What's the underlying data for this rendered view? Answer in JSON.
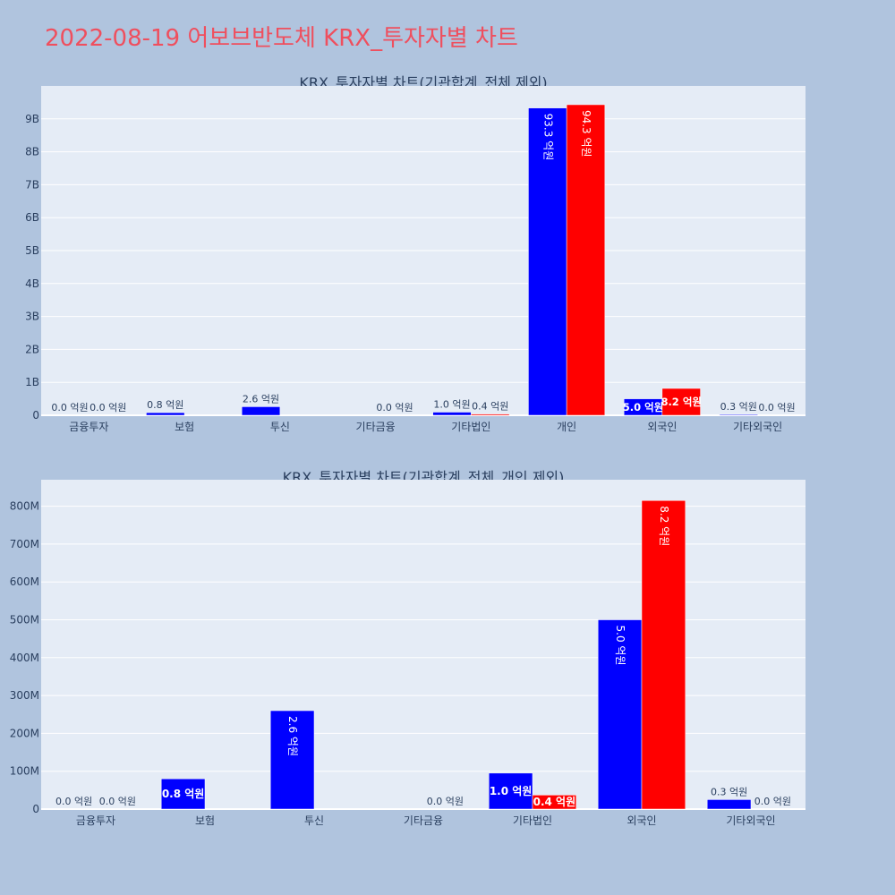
{
  "page_title": "2022-08-19 어보브반도체 KRX_투자자별 차트",
  "colors": {
    "buy": "#0000ff",
    "sell": "#ff0000",
    "title": "#ef4f5e",
    "plot_bg": "#e5ecf6",
    "paper_bg": "#b0c4de"
  },
  "chart_data": [
    {
      "type": "bar",
      "title": "KRX_투자자별 차트(기관합계_전체 제외)",
      "categories": [
        "금융투자",
        "보험",
        "투신",
        "기타금융",
        "기타법인",
        "개인",
        "외국인",
        "기타외국인"
      ],
      "series": [
        {
          "values": [
            0,
            80000000,
            260000000,
            null,
            95000000,
            9330000000,
            500000000,
            25000000
          ],
          "labels": [
            "0.0 억원",
            "0.8 억원",
            "2.6 억원",
            "",
            "1.0 억원",
            "93.3 억원",
            "5.0 억원",
            "0.3 억원"
          ]
        },
        {
          "values": [
            0,
            null,
            null,
            0,
            37000000,
            9430000000,
            815000000,
            0
          ],
          "labels": [
            "0.0 억원",
            "",
            "",
            "0.0 억원",
            "0.4 억원",
            "94.3 억원",
            "8.2 억원",
            "0.0 억원"
          ]
        }
      ],
      "ylim": [
        0,
        10000000000
      ],
      "yticks": [
        0,
        1000000000,
        2000000000,
        3000000000,
        4000000000,
        5000000000,
        6000000000,
        7000000000,
        8000000000,
        9000000000
      ],
      "ytick_labels": [
        "0",
        "1B",
        "2B",
        "3B",
        "4B",
        "5B",
        "6B",
        "7B",
        "8B",
        "9B"
      ],
      "grid": true
    },
    {
      "type": "bar",
      "title": "KRX_투자자별 차트(기관합계_전체_개인 제외)",
      "categories": [
        "금융투자",
        "보험",
        "투신",
        "기타금융",
        "기타법인",
        "외국인",
        "기타외국인"
      ],
      "series": [
        {
          "values": [
            0,
            80000000,
            260000000,
            null,
            95000000,
            500000000,
            25000000
          ],
          "labels": [
            "0.0 억원",
            "0.8 억원",
            "2.6 억원",
            "",
            "1.0 억원",
            "5.0 억원",
            "0.3 억원"
          ]
        },
        {
          "values": [
            0,
            null,
            null,
            0,
            37000000,
            815000000,
            0
          ],
          "labels": [
            "0.0 억원",
            "",
            "",
            "0.0 억원",
            "0.4 억원",
            "8.2 억원",
            "0.0 억원"
          ]
        }
      ],
      "ylim": [
        0,
        870000000
      ],
      "yticks": [
        0,
        100000000,
        200000000,
        300000000,
        400000000,
        500000000,
        600000000,
        700000000,
        800000000
      ],
      "ytick_labels": [
        "0",
        "100M",
        "200M",
        "300M",
        "400M",
        "500M",
        "600M",
        "700M",
        "800M"
      ],
      "grid": true
    }
  ]
}
